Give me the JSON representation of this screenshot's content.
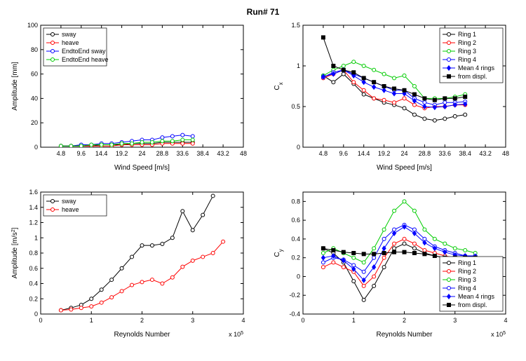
{
  "title": "Run# 71",
  "colors": {
    "black": "#000000",
    "red": "#ff0000",
    "blue": "#0000ff",
    "green": "#00cc00",
    "bg": "#ffffff",
    "box": "#000000",
    "text": "#000000"
  },
  "fontsizes": {
    "title": 12,
    "axis": 10,
    "tick": 9,
    "legend": 9
  },
  "panels": {
    "tl": {
      "xlabel": "Wind Speed [m/s]",
      "ylabel": "Amplitude [mm]",
      "xlim": [
        0,
        48
      ],
      "ylim": [
        0,
        100
      ],
      "xticks": [
        0,
        4.8,
        9.6,
        14.4,
        19.2,
        24,
        28.8,
        33.6,
        38.4,
        43.2,
        48
      ],
      "xticklabels": [
        "",
        "4.8",
        "9.6",
        "14.4",
        "19.2",
        "24",
        "28.8",
        "33.6",
        "38.4",
        "43.2",
        "48"
      ],
      "yticks": [
        0,
        20,
        40,
        60,
        80,
        100
      ],
      "legend_pos": "top-left",
      "legend": [
        {
          "label": "sway",
          "color": "#000000",
          "marker": "o",
          "fill": false
        },
        {
          "label": "heave",
          "color": "#ff0000",
          "marker": "o",
          "fill": false
        },
        {
          "label": "EndtoEnd sway",
          "color": "#0000ff",
          "marker": "o",
          "fill": false
        },
        {
          "label": "EndtoEnd heave",
          "color": "#00cc00",
          "marker": "o",
          "fill": false
        }
      ],
      "series": [
        {
          "color": "#000000",
          "marker": "o",
          "fill": false,
          "line": true,
          "x": [
            4.8,
            7.2,
            9.6,
            12,
            14.4,
            16.8,
            19.2,
            21.6,
            24,
            26.4,
            28.8,
            31.2,
            33.6,
            36
          ],
          "y": [
            1,
            1,
            1,
            1,
            2,
            2,
            2,
            3,
            3,
            3,
            4,
            4,
            4,
            4
          ]
        },
        {
          "color": "#ff0000",
          "marker": "o",
          "fill": false,
          "line": true,
          "x": [
            4.8,
            7.2,
            9.6,
            12,
            14.4,
            16.8,
            19.2,
            21.6,
            24,
            26.4,
            28.8,
            31.2,
            33.6,
            36
          ],
          "y": [
            1,
            1,
            1,
            1,
            1,
            1,
            2,
            2,
            2,
            2,
            3,
            3,
            3,
            3
          ]
        },
        {
          "color": "#0000ff",
          "marker": "o",
          "fill": false,
          "line": true,
          "x": [
            4.8,
            7.2,
            9.6,
            12,
            14.4,
            16.8,
            19.2,
            21.6,
            24,
            26.4,
            28.8,
            31.2,
            33.6,
            36
          ],
          "y": [
            1,
            1,
            2,
            2,
            3,
            3,
            4,
            5,
            6,
            6,
            8,
            9,
            10,
            9
          ]
        },
        {
          "color": "#00cc00",
          "marker": "o",
          "fill": false,
          "line": true,
          "x": [
            4.8,
            7.2,
            9.6,
            12,
            14.4,
            16.8,
            19.2,
            21.6,
            24,
            26.4,
            28.8,
            31.2,
            33.6,
            36
          ],
          "y": [
            1,
            1,
            1,
            2,
            2,
            2,
            3,
            3,
            4,
            4,
            5,
            5,
            6,
            6
          ]
        }
      ]
    },
    "tr": {
      "xlabel": "Wind Speed [m/s]",
      "ylabel": "Cx",
      "ylabel_sub": "x",
      "xlim": [
        0,
        48
      ],
      "ylim": [
        0,
        1.5
      ],
      "xticks": [
        0,
        4.8,
        9.6,
        14.4,
        19.2,
        24,
        28.8,
        33.6,
        38.4,
        43.2,
        48
      ],
      "xticklabels": [
        "",
        "4.8",
        "9.6",
        "14.4",
        "19.2",
        "24",
        "28.8",
        "33.6",
        "38.4",
        "43.2",
        "48"
      ],
      "yticks": [
        0,
        0.5,
        1,
        1.5
      ],
      "legend_pos": "top-right",
      "legend": [
        {
          "label": "Ring 1",
          "color": "#000000",
          "marker": "o",
          "fill": false
        },
        {
          "label": "Ring 2",
          "color": "#ff0000",
          "marker": "o",
          "fill": false
        },
        {
          "label": "Ring 3",
          "color": "#00cc00",
          "marker": "o",
          "fill": false
        },
        {
          "label": "Ring 4",
          "color": "#0000ff",
          "marker": "o",
          "fill": false
        },
        {
          "label": "Mean 4 rings",
          "color": "#0000ff",
          "marker": "d",
          "fill": true
        },
        {
          "label": "from displ.",
          "color": "#000000",
          "marker": "s",
          "fill": true
        }
      ],
      "series": [
        {
          "color": "#000000",
          "marker": "o",
          "fill": false,
          "line": true,
          "x": [
            4.8,
            7.2,
            9.6,
            12,
            14.4,
            16.8,
            19.2,
            21.6,
            24,
            26.4,
            28.8,
            31.2,
            33.6,
            36,
            38.4
          ],
          "y": [
            0.88,
            0.8,
            0.9,
            0.78,
            0.65,
            0.6,
            0.55,
            0.52,
            0.48,
            0.4,
            0.35,
            0.33,
            0.35,
            0.38,
            0.4
          ]
        },
        {
          "color": "#ff0000",
          "marker": "o",
          "fill": false,
          "line": true,
          "x": [
            4.8,
            7.2,
            9.6,
            12,
            14.4,
            16.8,
            19.2,
            21.6,
            24,
            26.4,
            28.8,
            31.2,
            33.6,
            36,
            38.4
          ],
          "y": [
            0.85,
            0.9,
            0.95,
            0.8,
            0.7,
            0.6,
            0.58,
            0.55,
            0.6,
            0.52,
            0.48,
            0.5,
            0.5,
            0.52,
            0.52
          ]
        },
        {
          "color": "#00cc00",
          "marker": "o",
          "fill": false,
          "line": true,
          "x": [
            4.8,
            7.2,
            9.6,
            12,
            14.4,
            16.8,
            19.2,
            21.6,
            24,
            26.4,
            28.8,
            31.2,
            33.6,
            36,
            38.4
          ],
          "y": [
            0.88,
            0.95,
            1.0,
            1.05,
            1.0,
            0.95,
            0.9,
            0.85,
            0.88,
            0.75,
            0.6,
            0.6,
            0.6,
            0.62,
            0.65
          ]
        },
        {
          "color": "#0000ff",
          "marker": "o",
          "fill": false,
          "line": true,
          "x": [
            4.8,
            7.2,
            9.6,
            12,
            14.4,
            16.8,
            19.2,
            21.6,
            24,
            26.4,
            28.8,
            31.2,
            33.6,
            36,
            38.4
          ],
          "y": [
            0.86,
            0.92,
            0.95,
            0.9,
            0.85,
            0.8,
            0.75,
            0.7,
            0.7,
            0.6,
            0.55,
            0.52,
            0.55,
            0.55,
            0.56
          ]
        },
        {
          "color": "#0000ff",
          "marker": "d",
          "fill": true,
          "line": true,
          "x": [
            4.8,
            7.2,
            9.6,
            12,
            14.4,
            16.8,
            19.2,
            21.6,
            24,
            26.4,
            28.8,
            31.2,
            33.6,
            36,
            38.4
          ],
          "y": [
            0.87,
            0.9,
            0.95,
            0.88,
            0.8,
            0.74,
            0.7,
            0.66,
            0.66,
            0.57,
            0.5,
            0.49,
            0.5,
            0.52,
            0.53
          ]
        },
        {
          "color": "#000000",
          "marker": "s",
          "fill": true,
          "line": true,
          "x": [
            4.8,
            7.2,
            9.6,
            12,
            14.4,
            16.8,
            19.2,
            21.6,
            24,
            26.4,
            28.8,
            31.2,
            33.6,
            36,
            38.4
          ],
          "y": [
            1.35,
            1.0,
            0.95,
            0.92,
            0.85,
            0.8,
            0.75,
            0.72,
            0.7,
            0.65,
            0.6,
            0.58,
            0.6,
            0.6,
            0.62
          ]
        }
      ]
    },
    "bl": {
      "xlabel": "Reynolds Number",
      "ylabel": "Amplitude [m/s2]",
      "ylabel_sup": "2",
      "xlim": [
        0,
        4
      ],
      "ylim": [
        0,
        1.6
      ],
      "xticks": [
        0,
        1,
        2,
        3,
        4
      ],
      "xexp": "x 10^5",
      "yticks": [
        0,
        0.2,
        0.4,
        0.6,
        0.8,
        1,
        1.2,
        1.4,
        1.6
      ],
      "legend_pos": "top-left",
      "legend": [
        {
          "label": "sway",
          "color": "#000000",
          "marker": "o",
          "fill": false
        },
        {
          "label": "heave",
          "color": "#ff0000",
          "marker": "o",
          "fill": false
        }
      ],
      "series": [
        {
          "color": "#000000",
          "marker": "o",
          "fill": false,
          "line": true,
          "x": [
            0.4,
            0.6,
            0.8,
            1.0,
            1.2,
            1.4,
            1.6,
            1.8,
            2.0,
            2.2,
            2.4,
            2.6,
            2.8,
            3.0,
            3.2,
            3.4
          ],
          "y": [
            0.05,
            0.08,
            0.12,
            0.2,
            0.32,
            0.45,
            0.6,
            0.75,
            0.9,
            0.9,
            0.92,
            1.0,
            1.35,
            1.1,
            1.3,
            1.55
          ]
        },
        {
          "color": "#ff0000",
          "marker": "o",
          "fill": false,
          "line": true,
          "x": [
            0.4,
            0.6,
            0.8,
            1.0,
            1.2,
            1.4,
            1.6,
            1.8,
            2.0,
            2.2,
            2.4,
            2.6,
            2.8,
            3.0,
            3.2,
            3.4,
            3.6
          ],
          "y": [
            0.05,
            0.06,
            0.08,
            0.1,
            0.15,
            0.22,
            0.3,
            0.38,
            0.42,
            0.45,
            0.4,
            0.48,
            0.62,
            0.7,
            0.75,
            0.8,
            0.95
          ]
        }
      ]
    },
    "br": {
      "xlabel": "Reynolds Number",
      "ylabel": "Cy",
      "ylabel_sub": "y",
      "xlim": [
        0,
        4
      ],
      "ylim": [
        -0.4,
        0.9
      ],
      "xticks": [
        0,
        1,
        2,
        3,
        4
      ],
      "xexp": "x 10^5",
      "yticks": [
        -0.4,
        -0.2,
        0,
        0.2,
        0.4,
        0.6,
        0.8
      ],
      "legend_pos": "bottom-right",
      "legend": [
        {
          "label": "Ring 1",
          "color": "#000000",
          "marker": "o",
          "fill": false
        },
        {
          "label": "Ring 2",
          "color": "#ff0000",
          "marker": "o",
          "fill": false
        },
        {
          "label": "Ring 3",
          "color": "#00cc00",
          "marker": "o",
          "fill": false
        },
        {
          "label": "Ring 4",
          "color": "#0000ff",
          "marker": "o",
          "fill": false
        },
        {
          "label": "Mean 4 rings",
          "color": "#0000ff",
          "marker": "d",
          "fill": true
        },
        {
          "label": "from displ.",
          "color": "#000000",
          "marker": "s",
          "fill": true
        }
      ],
      "series": [
        {
          "color": "#000000",
          "marker": "o",
          "fill": false,
          "line": true,
          "x": [
            0.4,
            0.6,
            0.8,
            1.0,
            1.2,
            1.4,
            1.6,
            1.8,
            2.0,
            2.2,
            2.4,
            2.6,
            2.8,
            3.0,
            3.2,
            3.4
          ],
          "y": [
            0.3,
            0.25,
            0.15,
            -0.05,
            -0.25,
            -0.1,
            0.1,
            0.3,
            0.35,
            0.3,
            0.25,
            0.22,
            0.2,
            0.18,
            0.18,
            0.18
          ]
        },
        {
          "color": "#ff0000",
          "marker": "o",
          "fill": false,
          "line": true,
          "x": [
            0.4,
            0.6,
            0.8,
            1.0,
            1.2,
            1.4,
            1.6,
            1.8,
            2.0,
            2.2,
            2.4,
            2.6,
            2.8,
            3.0,
            3.2,
            3.4
          ],
          "y": [
            0.1,
            0.15,
            0.1,
            0.05,
            -0.1,
            0.0,
            0.2,
            0.35,
            0.4,
            0.35,
            0.28,
            0.25,
            0.22,
            0.2,
            0.2,
            0.2
          ]
        },
        {
          "color": "#00cc00",
          "marker": "o",
          "fill": false,
          "line": true,
          "x": [
            0.4,
            0.6,
            0.8,
            1.0,
            1.2,
            1.4,
            1.6,
            1.8,
            2.0,
            2.2,
            2.4,
            2.6,
            2.8,
            3.0,
            3.2,
            3.4
          ],
          "y": [
            0.25,
            0.3,
            0.25,
            0.2,
            0.15,
            0.3,
            0.5,
            0.7,
            0.8,
            0.7,
            0.5,
            0.4,
            0.35,
            0.3,
            0.28,
            0.25
          ]
        },
        {
          "color": "#0000ff",
          "marker": "o",
          "fill": false,
          "line": true,
          "x": [
            0.4,
            0.6,
            0.8,
            1.0,
            1.2,
            1.4,
            1.6,
            1.8,
            2.0,
            2.2,
            2.4,
            2.6,
            2.8,
            3.0,
            3.2,
            3.4
          ],
          "y": [
            0.15,
            0.2,
            0.18,
            0.12,
            0.05,
            0.2,
            0.4,
            0.5,
            0.55,
            0.5,
            0.4,
            0.32,
            0.28,
            0.25,
            0.22,
            0.22
          ]
        },
        {
          "color": "#0000ff",
          "marker": "d",
          "fill": true,
          "line": true,
          "x": [
            0.4,
            0.6,
            0.8,
            1.0,
            1.2,
            1.4,
            1.6,
            1.8,
            2.0,
            2.2,
            2.4,
            2.6,
            2.8,
            3.0,
            3.2,
            3.4
          ],
          "y": [
            0.2,
            0.22,
            0.17,
            0.08,
            -0.04,
            0.1,
            0.3,
            0.46,
            0.53,
            0.46,
            0.36,
            0.3,
            0.26,
            0.23,
            0.22,
            0.21
          ]
        },
        {
          "color": "#000000",
          "marker": "s",
          "fill": true,
          "line": true,
          "x": [
            0.4,
            0.6,
            0.8,
            1.0,
            1.2,
            1.4,
            1.6,
            1.8,
            2.0,
            2.2,
            2.4,
            2.6,
            2.8,
            3.0,
            3.2,
            3.4
          ],
          "y": [
            0.3,
            0.28,
            0.26,
            0.25,
            0.24,
            0.24,
            0.25,
            0.26,
            0.26,
            0.25,
            0.24,
            0.22,
            0.2,
            0.2,
            0.2,
            0.2
          ]
        }
      ]
    }
  }
}
